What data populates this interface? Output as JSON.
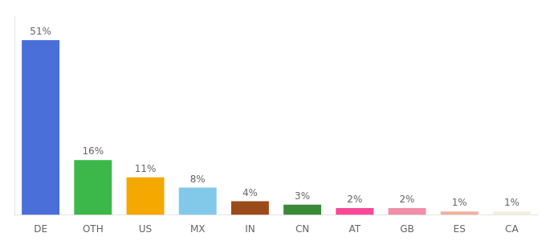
{
  "chart_data": {
    "type": "bar",
    "categories": [
      "DE",
      "OTH",
      "US",
      "MX",
      "IN",
      "CN",
      "AT",
      "GB",
      "ES",
      "CA"
    ],
    "values": [
      51,
      16,
      11,
      8,
      4,
      3,
      2,
      2,
      1,
      1
    ],
    "value_labels": [
      "51%",
      "16%",
      "11%",
      "8%",
      "4%",
      "3%",
      "2%",
      "2%",
      "1%",
      "1%"
    ],
    "data_labels": true,
    "colors": [
      "#4a6fd8",
      "#3cb84a",
      "#f5a800",
      "#82c8e8",
      "#9b4a1a",
      "#3a8a3a",
      "#f84898",
      "#f090a8",
      "#f0b0a0",
      "#f5f0dc"
    ],
    "ylim": [
      0,
      58
    ],
    "tick_labels": "x",
    "grid": false
  }
}
